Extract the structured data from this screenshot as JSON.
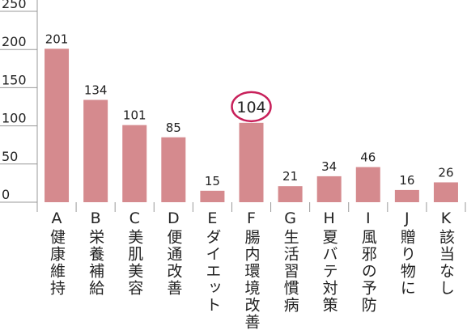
{
  "chart_data": {
    "type": "bar",
    "category_letters": [
      "A",
      "B",
      "C",
      "D",
      "E",
      "F",
      "G",
      "H",
      "I",
      "J",
      "K"
    ],
    "categories": [
      "健康維持",
      "栄養補給",
      "美肌美容",
      "便通改善",
      "ダイエット",
      "腸内環境改善",
      "生活習慣病",
      "夏バテ対策",
      "風邪の予防",
      "贈り物に",
      "該当なし"
    ],
    "values": [
      201,
      134,
      101,
      85,
      15,
      104,
      21,
      34,
      46,
      16,
      26
    ],
    "color": "#d58a8e",
    "highlight": "F",
    "highlight_color": "#c8205a",
    "ylim": [
      0,
      250
    ],
    "yticks": [
      0,
      50,
      100,
      150,
      200,
      250
    ]
  }
}
